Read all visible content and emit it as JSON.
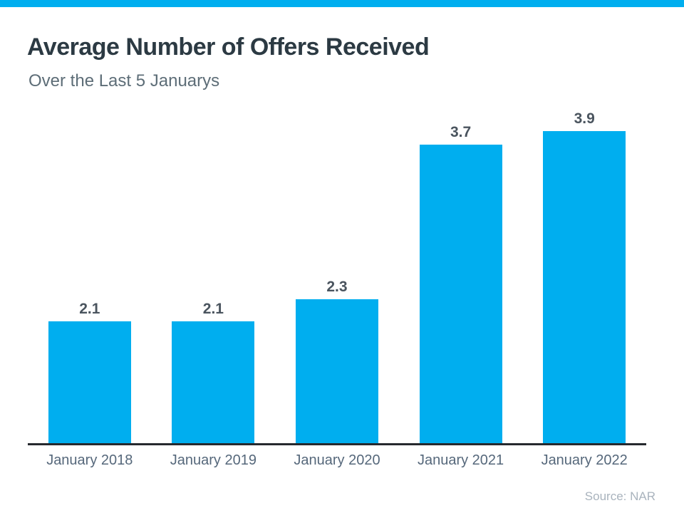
{
  "page": {
    "title": "Average Number of Offers Received",
    "subtitle": "Over the Last 5 Januarys",
    "source": "Source: NAR"
  },
  "colors": {
    "accent": "#00AEEF",
    "title_text": "#2C3A43",
    "subtitle_text": "#5D6D77",
    "value_label_text": "#4A545E",
    "axis_label_text": "#56687B",
    "axis_line": "#26292E",
    "source_text": "#A9B3BD"
  },
  "chart_data": {
    "type": "bar",
    "title": "Average Number of Offers Received",
    "subtitle": "Over the Last 5 Januarys",
    "categories": [
      "January 2018",
      "January 2019",
      "January 2020",
      "January 2021",
      "January 2022"
    ],
    "values": [
      2.1,
      2.1,
      2.3,
      3.7,
      3.9
    ],
    "value_label_format": "one_decimal_above_bar",
    "bar_color": "#00AEEF",
    "xlabel": "",
    "ylabel": "",
    "ylim": [
      1.0,
      4.0
    ],
    "grid": false,
    "legend": false,
    "y_axis_ticks_visible": false,
    "baseline_note": "bars are scaled from a truncated baseline of 1.0, not 0",
    "source": "Source: NAR"
  }
}
